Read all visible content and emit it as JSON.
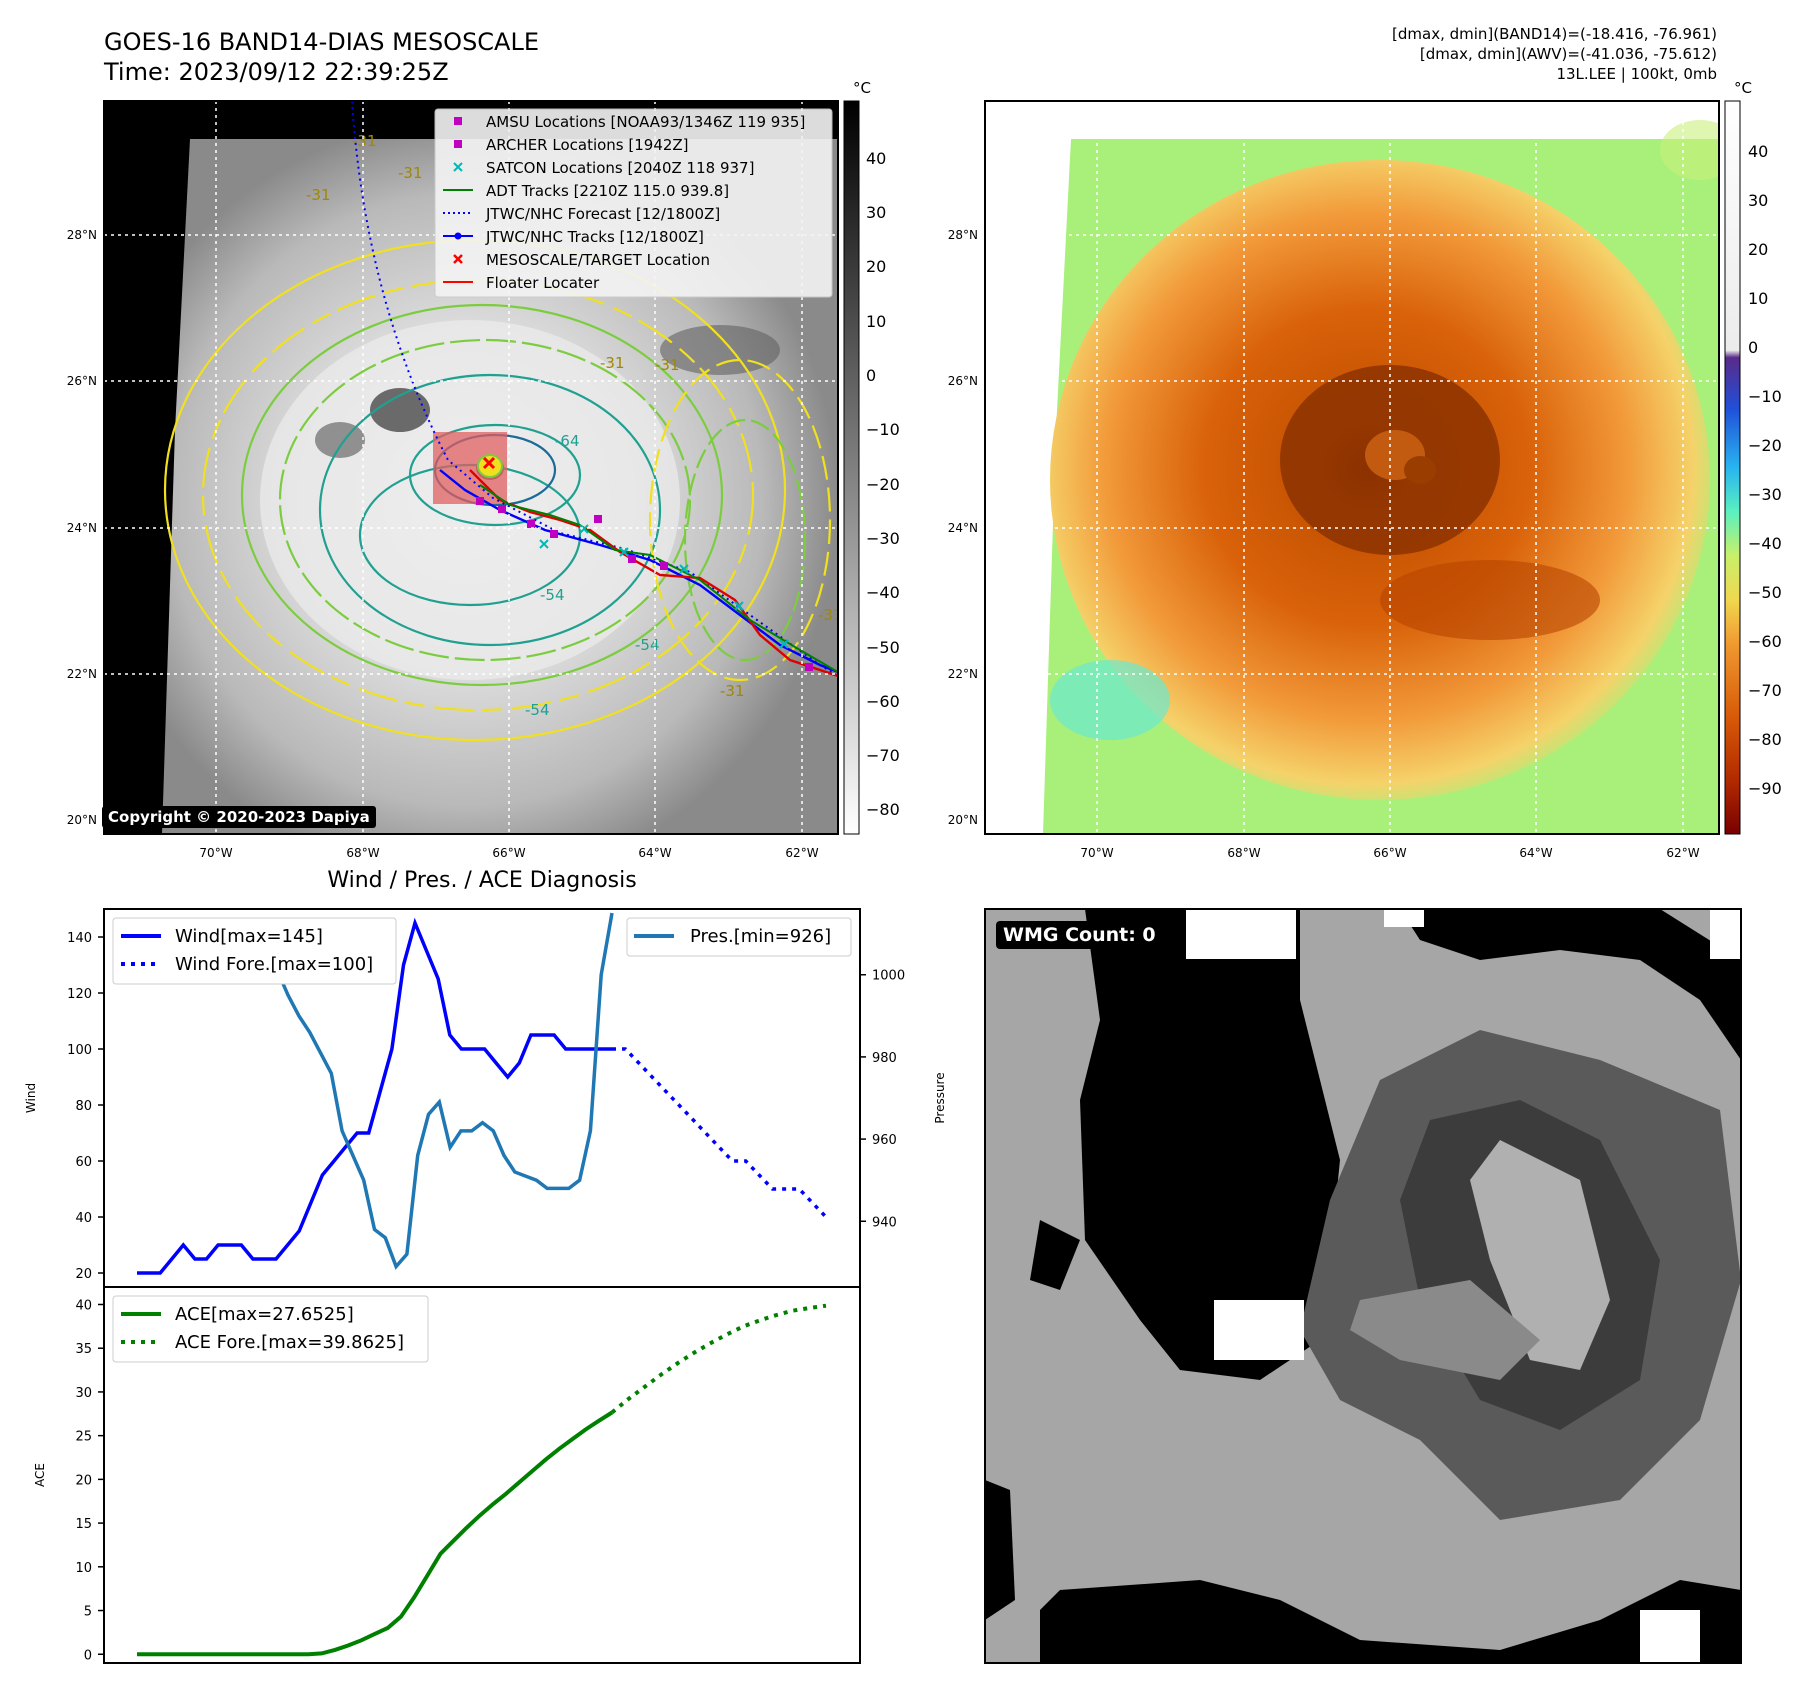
{
  "header": {
    "title_line1": "GOES-16 BAND14-DIAS MESOSCALE",
    "title_line2": "Time: 2023/09/12 22:39:25Z",
    "info_line1": "[dmax, dmin](BAND14)=(-18.416, -76.961)",
    "info_line2": "[dmax, dmin](AWV)=(-41.036, -75.612)",
    "info_line3": "13L.LEE | 100kt, 0mb"
  },
  "ir_map": {
    "lat_labels": [
      "28°N",
      "26°N",
      "24°N",
      "22°N",
      "20°N"
    ],
    "lon_labels": [
      "70°W",
      "68°W",
      "66°W",
      "64°W",
      "62°W"
    ],
    "colorbar_unit": "°C",
    "colorbar_ticks": [
      "40",
      "30",
      "20",
      "10",
      "0",
      "−10",
      "−20",
      "−30",
      "−40",
      "−50",
      "−60",
      "−70",
      "−80"
    ],
    "contour_labels": [
      "-31",
      "-31",
      "-31",
      "-31",
      "-54",
      "-54",
      "-54",
      "-64",
      "-31",
      "-31",
      "-31"
    ],
    "copyright": "Copyright © 2020-2023 Dapiya",
    "legend": [
      {
        "label": "AMSU Locations [NOAA93/1346Z 119 935]",
        "marker": "square",
        "color": "#c000c0"
      },
      {
        "label": "ARCHER Locations [1942Z]",
        "marker": "square",
        "color": "#c000c0"
      },
      {
        "label": "SATCON Locations [2040Z 118 937]",
        "marker": "x",
        "color": "#00b8b8"
      },
      {
        "label": "ADT Tracks [2210Z 115.0 939.8]",
        "marker": "line",
        "color": "#008000"
      },
      {
        "label": "JTWC/NHC Forecast [12/1800Z]",
        "marker": "dotted",
        "color": "#0000ff"
      },
      {
        "label": "JTWC/NHC Tracks [12/1800Z]",
        "marker": "line-dot",
        "color": "#0000ff"
      },
      {
        "label": "MESOSCALE/TARGET Location",
        "marker": "x",
        "color": "#ff0000"
      },
      {
        "label": "Floater Locater",
        "marker": "line",
        "color": "#ff0000"
      }
    ]
  },
  "awv_map": {
    "lat_labels": [
      "28°N",
      "26°N",
      "24°N",
      "22°N",
      "20°N"
    ],
    "lon_labels": [
      "70°W",
      "68°W",
      "66°W",
      "64°W",
      "62°W"
    ],
    "colorbar_unit": "°C",
    "colorbar_ticks": [
      "40",
      "30",
      "20",
      "10",
      "0",
      "−10",
      "−20",
      "−30",
      "−40",
      "−50",
      "−60",
      "−70",
      "−80",
      "−90"
    ]
  },
  "wmg": {
    "label": "WMG Count: 0"
  },
  "chart_data": [
    {
      "type": "line",
      "title": "Wind / Pres. / ACE Diagnosis",
      "ylabel": "Wind",
      "ylim": [
        15,
        150
      ],
      "yticks": [
        "20",
        "40",
        "60",
        "80",
        "100",
        "120",
        "140"
      ],
      "series": [
        {
          "name": "Wind[max=145]",
          "style": "solid",
          "color": "#0000ff",
          "values": [
            20,
            20,
            20,
            25,
            30,
            25,
            25,
            30,
            30,
            30,
            25,
            25,
            25,
            30,
            35,
            45,
            55,
            60,
            65,
            70,
            70,
            85,
            100,
            130,
            145,
            135,
            125,
            105,
            100,
            100,
            100,
            95,
            90,
            95,
            105,
            105,
            105,
            100,
            100,
            100,
            100,
            100
          ]
        },
        {
          "name": "Wind Fore.[max=100]",
          "style": "dotted",
          "color": "#0000ff",
          "values": [
            100,
            100,
            95,
            90,
            85,
            80,
            75,
            70,
            65,
            60,
            60,
            55,
            50,
            50,
            50,
            45,
            40
          ]
        }
      ],
      "legend": [
        "Wind[max=145]",
        "Wind Fore.[max=100]"
      ]
    },
    {
      "type": "line",
      "ylabel": "Pressure",
      "ylim": [
        924,
        1016
      ],
      "yticks": [
        "940",
        "960",
        "980",
        "1000"
      ],
      "series": [
        {
          "name": "Pres.[min=926]",
          "style": "solid",
          "color": "#1f77b4",
          "values": [
            1010,
            1010,
            1009,
            1008,
            1008,
            1008,
            1008,
            1008,
            1008,
            1009,
            1009,
            1008,
            1005,
            1001,
            995,
            990,
            986,
            981,
            976,
            962,
            956,
            950,
            938,
            936,
            929,
            932,
            956,
            966,
            969,
            958,
            962,
            962,
            964,
            962,
            956,
            952,
            951,
            950,
            948,
            948,
            948,
            950,
            962,
            1000,
            1015
          ]
        }
      ],
      "legend": [
        "Pres.[min=926]"
      ]
    },
    {
      "type": "line",
      "ylabel": "ACE",
      "ylim": [
        -1,
        42
      ],
      "yticks": [
        "0",
        "5",
        "10",
        "15",
        "20",
        "25",
        "30",
        "35",
        "40"
      ],
      "series": [
        {
          "name": "ACE[max=27.6525]",
          "style": "solid",
          "color": "#008000",
          "values": [
            0,
            0,
            0,
            0,
            0,
            0,
            0,
            0,
            0,
            0,
            0,
            0,
            0,
            0,
            0.1,
            0.5,
            1.0,
            1.6,
            2.3,
            3.0,
            4.3,
            6.5,
            9.0,
            11.5,
            13.0,
            14.5,
            15.9,
            17.2,
            18.4,
            19.7,
            21.0,
            22.3,
            23.5,
            24.6,
            25.7,
            26.7,
            27.65
          ]
        },
        {
          "name": "ACE Fore.[max=39.8625]",
          "style": "dotted",
          "color": "#008000",
          "values": [
            27.65,
            29.2,
            30.6,
            32.0,
            33.3,
            34.5,
            35.6,
            36.6,
            37.5,
            38.2,
            38.8,
            39.3,
            39.6,
            39.86
          ]
        }
      ],
      "legend": [
        "ACE[max=27.6525]",
        "ACE Fore.[max=39.8625]"
      ]
    }
  ]
}
